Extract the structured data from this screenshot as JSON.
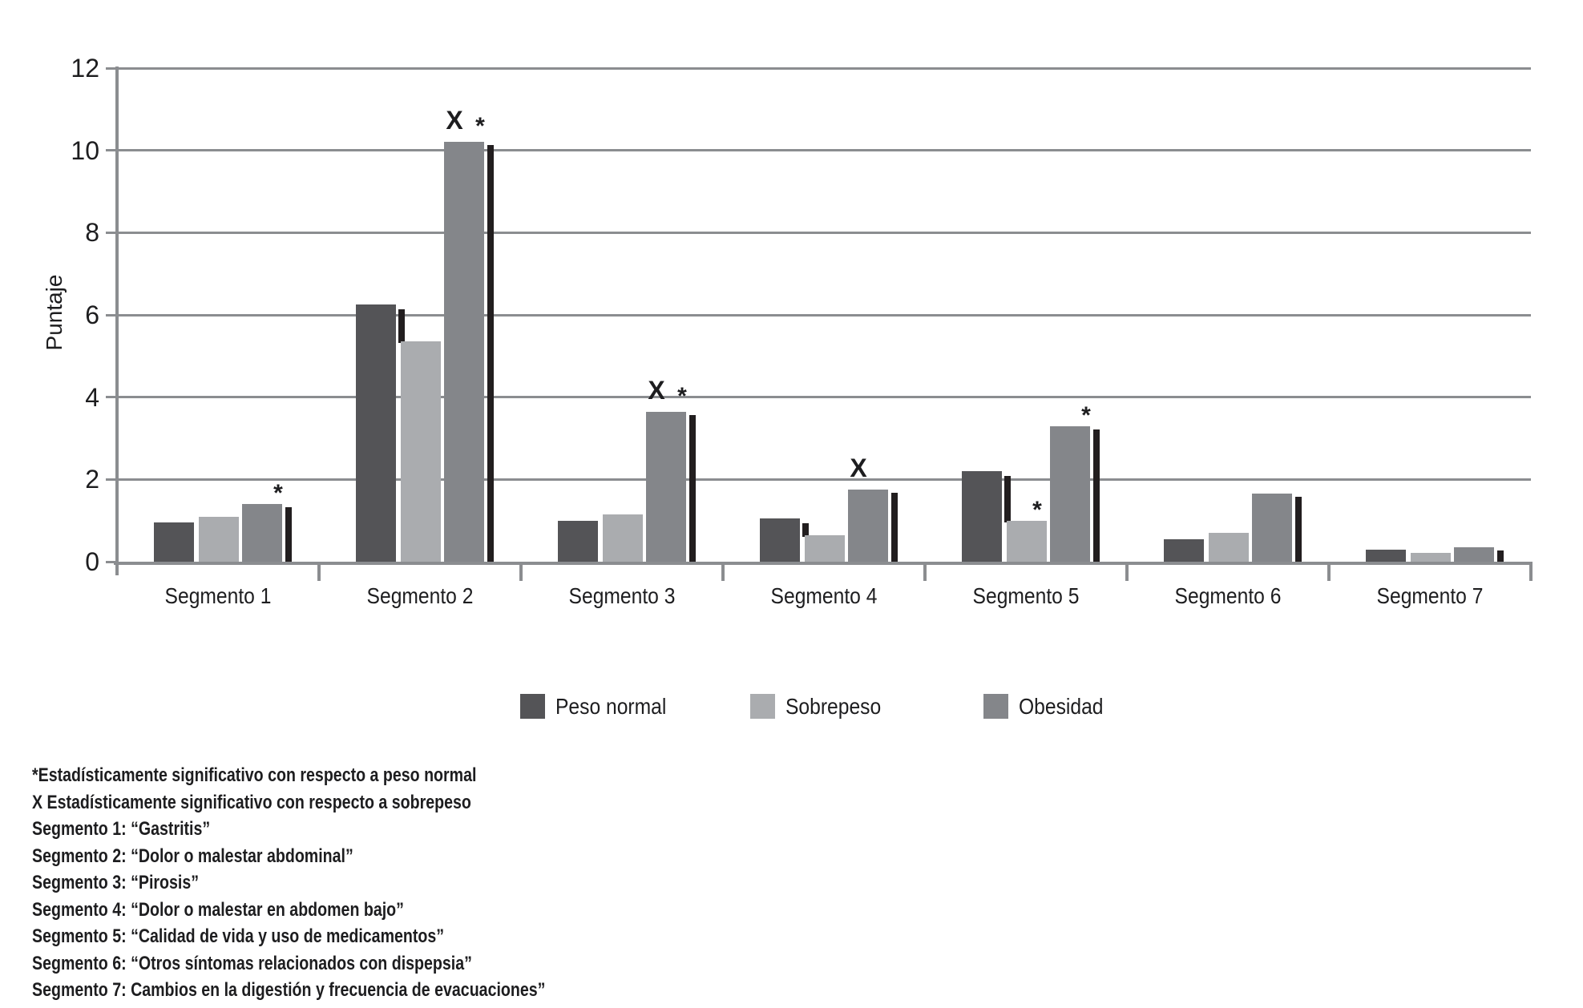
{
  "chart_data": {
    "type": "bar",
    "title": "",
    "xlabel": "",
    "ylabel": "Puntaje",
    "ylim": [
      0,
      12
    ],
    "yticks": [
      0,
      2,
      4,
      6,
      8,
      10,
      12
    ],
    "grid": true,
    "legend_position": "bottom",
    "categories": [
      "Segmento 1",
      "Segmento 2",
      "Segmento 3",
      "Segmento 4",
      "Segmento 5",
      "Segmento 6",
      "Segmento 7"
    ],
    "series": [
      {
        "name": "Peso normal",
        "color": "#545457",
        "values": [
          0.95,
          6.25,
          1.0,
          1.05,
          2.2,
          0.55,
          0.3
        ]
      },
      {
        "name": "Sobrepeso",
        "color": "#aaacaf",
        "values": [
          1.1,
          5.35,
          1.15,
          0.65,
          1.0,
          0.7,
          0.22
        ]
      },
      {
        "name": "Obesidad",
        "color": "#84868a",
        "values": [
          1.4,
          10.2,
          3.65,
          1.75,
          3.3,
          1.65,
          0.35
        ]
      }
    ],
    "annotations": {
      "obesidad_marks": [
        "*",
        "X *",
        "X *",
        "X",
        "*",
        "",
        ""
      ],
      "sobrepeso_marks": [
        "",
        "",
        "",
        "",
        "*",
        "",
        ""
      ]
    },
    "shadow_color": "#221e1f",
    "gridline_color": "#8b8d90",
    "text_color": "#1d1d1f"
  },
  "footnotes": [
    "*Estadísticamente significativo con respecto a peso normal",
    "X Estadísticamente significativo con respecto a sobrepeso",
    "Segmento 1: “Gastritis”",
    "Segmento 2: “Dolor o malestar abdominal”",
    "Segmento 3: “Pirosis”",
    "Segmento 4: “Dolor o malestar en abdomen bajo”",
    "Segmento 5: “Calidad de vida y uso de medicamentos”",
    "Segmento 6: “Otros síntomas relacionados con dispepsia”",
    "Segmento 7: Cambios en la digestión y frecuencia de evacuaciones”"
  ]
}
